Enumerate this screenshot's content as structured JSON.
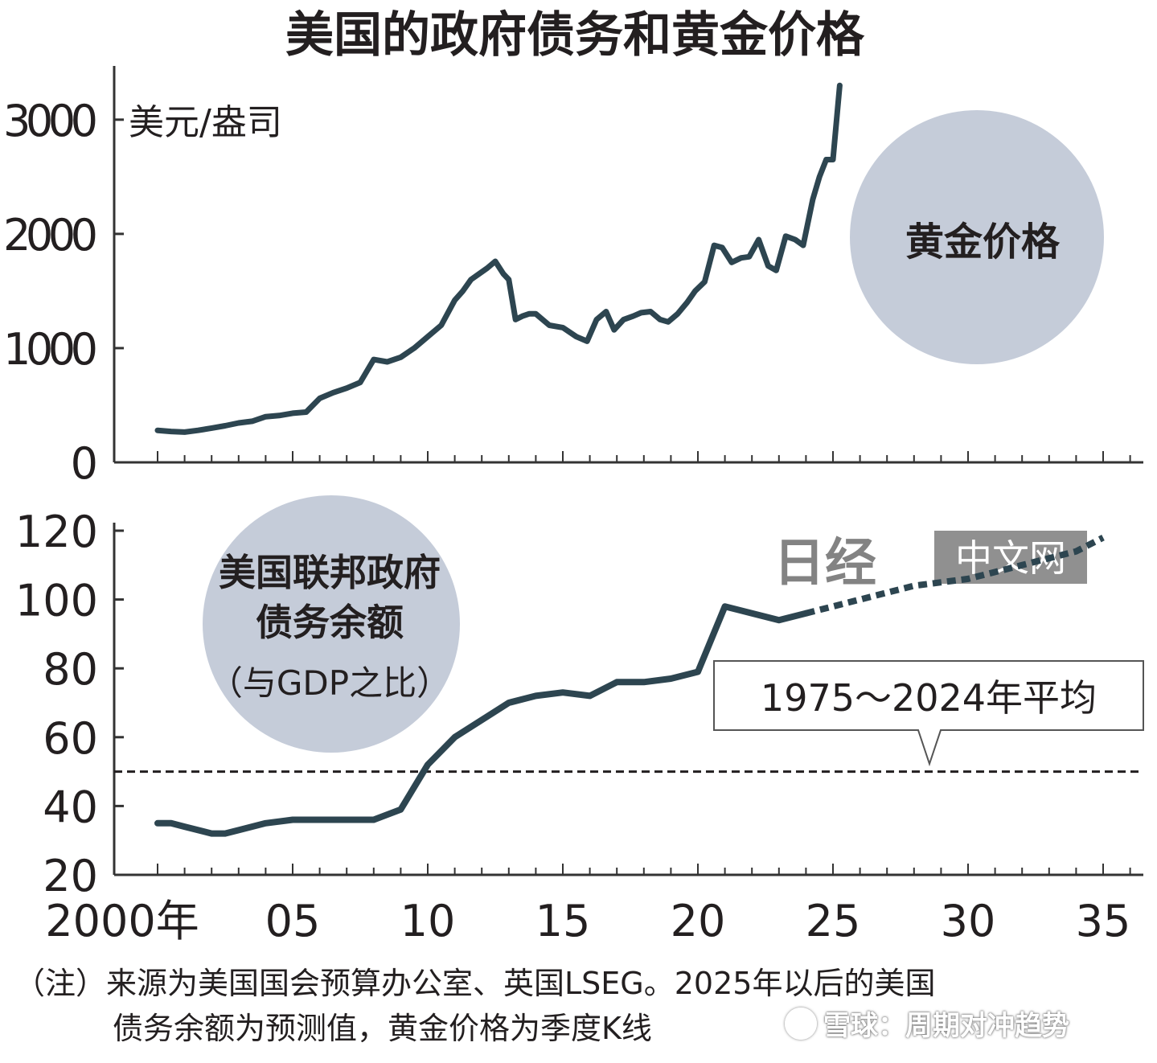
{
  "chart_data": {
    "title": "美国的政府债务和黄金价格",
    "x_ticks": [
      "2000年",
      "05",
      "10",
      "15",
      "20",
      "25",
      "30",
      "35"
    ],
    "colors": {
      "line": "#2d4550",
      "bubble": "#c5ccd9",
      "axis": "#333333"
    },
    "panels": [
      {
        "type": "line",
        "name": "gold",
        "unit_label": "美元/盎司",
        "series_label": "黄金价格",
        "ylim": [
          0,
          3400
        ],
        "y_ticks": [
          0,
          1000,
          2000,
          3000
        ],
        "series": [
          {
            "x": [
              2000.0,
              2000.5,
              2001.0,
              2001.5,
              2002.0,
              2002.5,
              2003.0,
              2003.5,
              2004.0,
              2004.5,
              2005.0,
              2005.5,
              2006.0,
              2006.5,
              2007.0,
              2007.5,
              2008.0,
              2008.5,
              2009.0,
              2009.5,
              2010.0,
              2010.5,
              2011.0,
              2011.3,
              2011.6,
              2011.9,
              2012.2,
              2012.5,
              2012.8,
              2013.0,
              2013.25,
              2013.5,
              2013.75,
              2014.0,
              2014.5,
              2015.0,
              2015.5,
              2015.9,
              2016.25,
              2016.6,
              2016.9,
              2017.25,
              2017.6,
              2017.9,
              2018.25,
              2018.6,
              2018.9,
              2019.25,
              2019.6,
              2019.9,
              2020.25,
              2020.6,
              2020.9,
              2021.25,
              2021.6,
              2021.9,
              2022.25,
              2022.6,
              2022.9,
              2023.25,
              2023.6,
              2023.9,
              2024.25,
              2024.5,
              2024.75,
              2025.0,
              2025.25
            ],
            "values": [
              280,
              270,
              265,
              280,
              300,
              320,
              345,
              360,
              400,
              410,
              430,
              440,
              560,
              610,
              650,
              700,
              900,
              880,
              920,
              1000,
              1100,
              1200,
              1420,
              1500,
              1600,
              1650,
              1700,
              1760,
              1650,
              1600,
              1250,
              1280,
              1300,
              1300,
              1200,
              1180,
              1100,
              1060,
              1250,
              1320,
              1160,
              1250,
              1280,
              1310,
              1320,
              1250,
              1230,
              1300,
              1400,
              1500,
              1580,
              1900,
              1880,
              1750,
              1790,
              1800,
              1950,
              1720,
              1680,
              1980,
              1950,
              1900,
              2300,
              2500,
              2650,
              2650,
              3300
            ]
          }
        ]
      },
      {
        "type": "line",
        "name": "debt",
        "series_label": [
          "美国联邦政府",
          "债务余额",
          "（与GDP之比）"
        ],
        "ylim": [
          20,
          120
        ],
        "y_ticks": [
          20,
          40,
          60,
          80,
          100,
          120
        ],
        "reference_line": {
          "value": 50,
          "label": "1975～2024年平均"
        },
        "series": [
          {
            "style": "solid",
            "x": [
              2000,
              2000.5,
              2001,
              2002,
              2002.5,
              2003,
              2004,
              2005,
              2006,
              2007,
              2008,
              2009,
              2010,
              2011,
              2012,
              2013,
              2014,
              2015,
              2016,
              2017,
              2018,
              2019,
              2020,
              2021,
              2022,
              2023,
              2024
            ],
            "values": [
              35,
              35,
              34,
              32,
              32,
              33,
              35,
              36,
              36,
              36,
              36,
              39,
              52,
              60,
              65,
              70,
              72,
              73,
              72,
              76,
              76,
              77,
              79,
              98,
              96,
              94,
              96
            ]
          },
          {
            "style": "dashed",
            "x": [
              2024,
              2025,
              2026,
              2027,
              2028,
              2029,
              2030,
              2031,
              2032,
              2033,
              2034,
              2035
            ],
            "values": [
              96,
              98,
              100,
              102,
              104,
              105,
              106,
              108,
              110,
              112,
              114,
              118
            ]
          }
        ]
      }
    ]
  },
  "note": [
    "（注）来源为美国国会预算办公室、英国LSEG。2025年以后的美国",
    "债务余额为预测值，黄金价格为季度K线"
  ],
  "watermark": {
    "logo_text": "日经",
    "logo_subtext": "中文网",
    "platform": "雪球：周期对冲趋势"
  }
}
